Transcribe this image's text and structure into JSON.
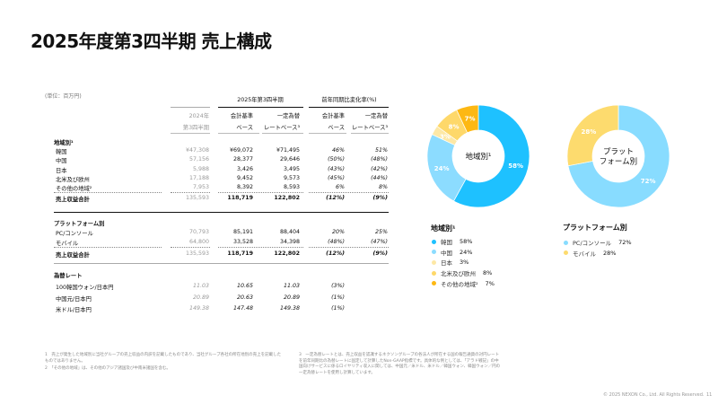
{
  "title": "2025年度第3四半期 売上構成",
  "unit": "(単位：百万円)",
  "table": {
    "group_2025": "2025年第3四半期",
    "group_yoy": "前年同期比変化率(%)",
    "col_2024": [
      "2024年",
      "第3四半期"
    ],
    "col_acct": [
      "会計基準",
      "ベース"
    ],
    "col_fx": [
      "一定為替",
      "レートベース³"
    ],
    "col_acct_yoy": [
      "会計基準",
      "ベース"
    ],
    "col_fx_yoy": [
      "一定為替",
      "レートベース³"
    ],
    "region_header": "地域別¹",
    "region_rows": [
      {
        "label": "韓国",
        "v2024": "¥47,308",
        "acct": "¥69,072",
        "fx": "¥71,495",
        "yoy_acct": "46%",
        "yoy_fx": "51%"
      },
      {
        "label": "中国",
        "v2024": "57,156",
        "acct": "28,377",
        "fx": "29,646",
        "yoy_acct": "(50%)",
        "yoy_fx": "(48%)"
      },
      {
        "label": "日本",
        "v2024": "5,988",
        "acct": "3,426",
        "fx": "3,495",
        "yoy_acct": "(43%)",
        "yoy_fx": "(42%)"
      },
      {
        "label": "北米及び欧州",
        "v2024": "17,188",
        "acct": "9,452",
        "fx": "9,573",
        "yoy_acct": "(45%)",
        "yoy_fx": "(44%)"
      },
      {
        "label": "その他の地域²",
        "v2024": "7,953",
        "acct": "8,392",
        "fx": "8,593",
        "yoy_acct": "6%",
        "yoy_fx": "8%"
      }
    ],
    "region_total": {
      "label": "売上収益合計",
      "v2024": "135,593",
      "acct": "118,719",
      "fx": "122,802",
      "yoy_acct": "(12%)",
      "yoy_fx": "(9%)"
    },
    "platform_header": "プラットフォーム別",
    "platform_rows": [
      {
        "label": "PC/コンソール",
        "v2024": "70,793",
        "acct": "85,191",
        "fx": "88,404",
        "yoy_acct": "20%",
        "yoy_fx": "25%"
      },
      {
        "label": "モバイル",
        "v2024": "64,800",
        "acct": "33,528",
        "fx": "34,398",
        "yoy_acct": "(48%)",
        "yoy_fx": "(47%)"
      }
    ],
    "platform_total": {
      "label": "売上収益合計",
      "v2024": "135,593",
      "acct": "118,719",
      "fx": "122,802",
      "yoy_acct": "(12%)",
      "yoy_fx": "(9%)"
    },
    "fx_header": "為替レート",
    "fx_rows": [
      {
        "label": "100韓国ウォン/日本円",
        "v2024": "11.03",
        "acct": "10.65",
        "fx": "11.03",
        "yoy_acct": "(3%)"
      },
      {
        "label": "中国元/日本円",
        "v2024": "20.89",
        "acct": "20.63",
        "fx": "20.89",
        "yoy_acct": "(1%)"
      },
      {
        "label": "米ドル/日本円",
        "v2024": "149.38",
        "acct": "147.48",
        "fx": "149.38",
        "yoy_acct": "(1%)"
      }
    ]
  },
  "chart_data": [
    {
      "type": "pie",
      "center_label": "地域別¹",
      "categories": [
        "韓国",
        "中国",
        "日本",
        "北米及び欧州",
        "その他の地域²"
      ],
      "values": [
        58,
        24,
        3,
        8,
        7
      ],
      "labels": [
        "58%",
        "24%",
        "3%",
        "8%",
        "7%"
      ],
      "colors": [
        "#1ec1ff",
        "#8cdcff",
        "#fde8a6",
        "#fed86a",
        "#fdb813"
      ],
      "legend_title": "地域別¹",
      "legend": "below"
    },
    {
      "type": "pie",
      "center_label": "プラット フォーム別",
      "categories": [
        "PC/コンソール",
        "モバイル"
      ],
      "values": [
        72,
        28
      ],
      "labels": [
        "72%",
        "28%"
      ],
      "colors": [
        "#88dcff",
        "#fddb6e"
      ],
      "legend_title": "プラットフォーム別",
      "legend": "below"
    }
  ],
  "footnotes": [
    "1　売上が発生した地域別に当社グループの売上収益の内訳を記載したものであり、当社グループ各社の所在地別の売上を記載したものではありません。",
    "2　「その他の地域」は、その他のアジア諸国及び中南米諸国を含む。",
    "3　一定為替レートとは、売上収益を認識するネクソングループの各法人が所在する国の報告通貨の対円レートを前年同期比の為替レートに固定して計算したNon-GAAP指標です。具体的な例としては、「アラド戦記」の中国向けサービスに係るロイヤリティ収入に関しては、中国元／米ドル、米ドル／韓国ウォン、韓国ウォン／円の一定為替レートを使用し計算しています。"
  ],
  "footer": {
    "copyright": "© 2025 NEXON Co., Ltd. All Rights Reserved.",
    "page": "11"
  }
}
